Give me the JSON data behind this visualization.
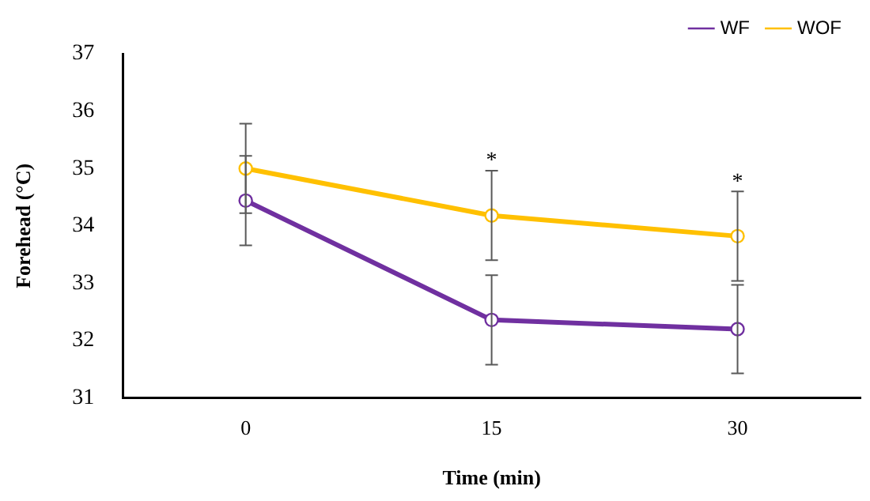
{
  "chart_data": {
    "type": "line",
    "xlabel": "Time (min)",
    "ylabel": "Forehead (°C)",
    "categories": [
      "0",
      "15",
      "30"
    ],
    "series": [
      {
        "name": "WF",
        "color": "#7030a0",
        "values": [
          34.44,
          32.36,
          32.2
        ],
        "errors": [
          0.78,
          0.78,
          0.77
        ]
      },
      {
        "name": "WOF",
        "color": "#ffc000",
        "values": [
          35.0,
          34.18,
          33.82
        ],
        "errors": [
          0.78,
          0.78,
          0.78
        ]
      }
    ],
    "ylim": [
      31,
      37
    ],
    "yticks": [
      31,
      32,
      33,
      34,
      35,
      36,
      37
    ],
    "annotations": [
      "*",
      "*"
    ],
    "grid": false,
    "legend": "top right",
    "marker": "circle",
    "line_style": "solid"
  }
}
